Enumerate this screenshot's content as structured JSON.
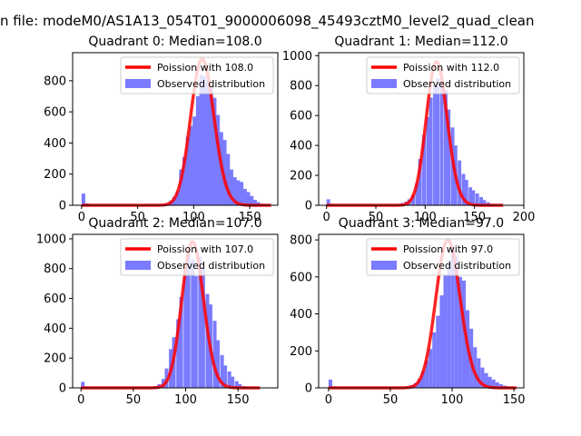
{
  "suptitle": "n file: modeM0/AS1A13_054T01_9000006098_45493cztM0_level2_quad_clean",
  "colors": {
    "poisson": "#ff0000",
    "observed": "#7b7bff",
    "axis": "#000000"
  },
  "chart_data": [
    {
      "type": "bar",
      "title": "Quadrant 0: Median=108.0",
      "xlim": [
        -8,
        175
      ],
      "ylim": [
        0,
        980
      ],
      "xticks": [
        0,
        50,
        100,
        150
      ],
      "yticks": [
        0,
        200,
        400,
        600,
        800
      ],
      "legend_position": "top-right",
      "series": [
        {
          "name": "Poission with 108.0",
          "kind": "line",
          "mean": 108.0,
          "scale": 940
        },
        {
          "name": "Observed distribution",
          "kind": "hist",
          "bin_width": 3.3,
          "bins": [
            [
              0,
              75
            ],
            [
              3,
              12
            ],
            [
              72,
              8
            ],
            [
              75,
              15
            ],
            [
              78,
              30
            ],
            [
              81,
              55
            ],
            [
              84,
              90
            ],
            [
              87,
              230
            ],
            [
              90,
              310
            ],
            [
              93,
              440
            ],
            [
              96,
              510
            ],
            [
              99,
              570
            ],
            [
              102,
              700
            ],
            [
              105,
              840
            ],
            [
              108,
              830
            ],
            [
              111,
              800
            ],
            [
              114,
              760
            ],
            [
              117,
              690
            ],
            [
              120,
              580
            ],
            [
              123,
              470
            ],
            [
              126,
              420
            ],
            [
              129,
              330
            ],
            [
              132,
              230
            ],
            [
              135,
              180
            ],
            [
              138,
              160
            ],
            [
              141,
              150
            ],
            [
              144,
              105
            ],
            [
              147,
              85
            ],
            [
              150,
              60
            ],
            [
              153,
              35
            ],
            [
              156,
              20
            ],
            [
              159,
              10
            ],
            [
              162,
              5
            ]
          ]
        }
      ]
    },
    {
      "type": "bar",
      "title": "Quadrant 1: Median=112.0",
      "xlim": [
        -8,
        200
      ],
      "ylim": [
        0,
        1020
      ],
      "xticks": [
        0,
        50,
        100,
        150,
        200
      ],
      "yticks": [
        0,
        200,
        400,
        600,
        800,
        1000
      ],
      "legend_position": "top-right",
      "series": [
        {
          "name": "Poission with 112.0",
          "kind": "line",
          "mean": 112.0,
          "scale": 960
        },
        {
          "name": "Observed distribution",
          "kind": "hist",
          "bin_width": 3.6,
          "bins": [
            [
              0,
              40
            ],
            [
              3.6,
              10
            ],
            [
              75,
              15
            ],
            [
              79,
              25
            ],
            [
              82,
              40
            ],
            [
              86,
              70
            ],
            [
              90,
              150
            ],
            [
              93,
              310
            ],
            [
              97,
              470
            ],
            [
              101,
              590
            ],
            [
              104,
              720
            ],
            [
              108,
              800
            ],
            [
              111,
              850
            ],
            [
              115,
              820
            ],
            [
              119,
              770
            ],
            [
              122,
              640
            ],
            [
              126,
              520
            ],
            [
              129,
              400
            ],
            [
              133,
              300
            ],
            [
              137,
              210
            ],
            [
              140,
              170
            ],
            [
              144,
              120
            ],
            [
              147,
              100
            ],
            [
              151,
              80
            ],
            [
              155,
              55
            ],
            [
              158,
              35
            ],
            [
              162,
              20
            ],
            [
              165,
              10
            ],
            [
              169,
              5
            ]
          ]
        }
      ]
    },
    {
      "type": "bar",
      "title": "Quadrant 2: Median=107.0",
      "xlim": [
        -8,
        188
      ],
      "ylim": [
        0,
        1030
      ],
      "xticks": [
        0,
        50,
        100,
        150
      ],
      "yticks": [
        0,
        200,
        400,
        600,
        800,
        1000
      ],
      "legend_position": "top-right",
      "series": [
        {
          "name": "Poission with 107.0",
          "kind": "line",
          "mean": 107.0,
          "scale": 980
        },
        {
          "name": "Observed distribution",
          "kind": "hist",
          "bin_width": 3.5,
          "bins": [
            [
              0,
              40
            ],
            [
              3.5,
              8
            ],
            [
              70,
              12
            ],
            [
              73,
              25
            ],
            [
              77,
              60
            ],
            [
              80,
              130
            ],
            [
              84,
              260
            ],
            [
              87,
              340
            ],
            [
              91,
              460
            ],
            [
              94,
              610
            ],
            [
              98,
              760
            ],
            [
              101,
              920
            ],
            [
              105,
              860
            ],
            [
              108,
              750
            ],
            [
              112,
              880
            ],
            [
              115,
              800
            ],
            [
              119,
              630
            ],
            [
              122,
              560
            ],
            [
              126,
              450
            ],
            [
              129,
              320
            ],
            [
              133,
              220
            ],
            [
              136,
              150
            ],
            [
              140,
              110
            ],
            [
              143,
              75
            ],
            [
              147,
              45
            ],
            [
              150,
              25
            ],
            [
              154,
              12
            ],
            [
              157,
              5
            ]
          ]
        }
      ]
    },
    {
      "type": "bar",
      "title": "Quadrant 3: Median=97.0",
      "xlim": [
        -8,
        158
      ],
      "ylim": [
        0,
        830
      ],
      "xticks": [
        0,
        50,
        100,
        150
      ],
      "yticks": [
        0,
        200,
        400,
        600,
        800
      ],
      "legend_position": "top-right",
      "series": [
        {
          "name": "Poission with 97.0",
          "kind": "line",
          "mean": 97.0,
          "scale": 800
        },
        {
          "name": "Observed distribution",
          "kind": "hist",
          "bin_width": 3.0,
          "bins": [
            [
              0,
              45
            ],
            [
              3,
              8
            ],
            [
              63,
              8
            ],
            [
              66,
              15
            ],
            [
              69,
              25
            ],
            [
              72,
              50
            ],
            [
              75,
              90
            ],
            [
              78,
              150
            ],
            [
              81,
              210
            ],
            [
              84,
              300
            ],
            [
              87,
              390
            ],
            [
              90,
              500
            ],
            [
              93,
              610
            ],
            [
              96,
              690
            ],
            [
              99,
              740
            ],
            [
              102,
              720
            ],
            [
              105,
              600
            ],
            [
              108,
              580
            ],
            [
              111,
              420
            ],
            [
              114,
              320
            ],
            [
              117,
              220
            ],
            [
              120,
              160
            ],
            [
              123,
              110
            ],
            [
              126,
              80
            ],
            [
              129,
              60
            ],
            [
              132,
              45
            ],
            [
              135,
              30
            ],
            [
              138,
              20
            ],
            [
              141,
              12
            ],
            [
              144,
              6
            ]
          ]
        }
      ]
    }
  ]
}
